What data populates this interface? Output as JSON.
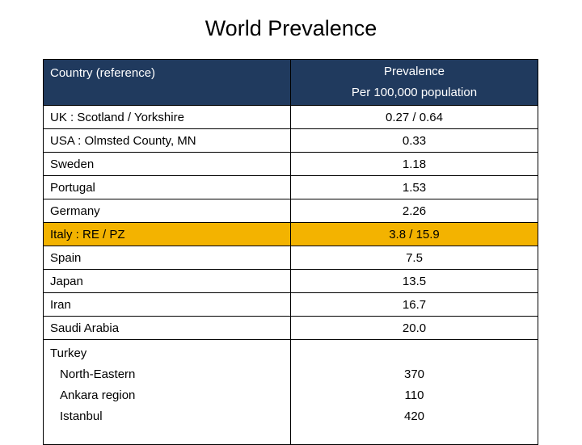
{
  "title": "World Prevalence",
  "table": {
    "header": {
      "country": "Country (reference)",
      "prevalence_line1": "Prevalence",
      "prevalence_line2": "Per 100,000 population"
    },
    "rows": [
      {
        "country": "UK   :  Scotland  /   Yorkshire",
        "value": "0.27 / 0.64",
        "highlight": false
      },
      {
        "country": "USA  :  Olmsted County, MN",
        "value": "0.33",
        "highlight": false
      },
      {
        "country": "Sweden",
        "value": "1.18",
        "highlight": false
      },
      {
        "country": "Portugal",
        "value": "1.53",
        "highlight": false
      },
      {
        "country": "Germany",
        "value": "2.26",
        "highlight": false
      },
      {
        "country": "Italy  : RE / PZ",
        "value": "3.8 / 15.9",
        "highlight": true
      },
      {
        "country": "Spain",
        "value": "7.5",
        "highlight": false
      },
      {
        "country": "Japan",
        "value": "13.5",
        "highlight": false
      },
      {
        "country": "Iran",
        "value": "16.7",
        "highlight": false
      },
      {
        "country": "Saudi Arabia",
        "value": "20.0",
        "highlight": false
      }
    ],
    "turkey": {
      "country": "Turkey",
      "regions": [
        "North-Eastern",
        "Ankara region",
        "Istanbul"
      ],
      "values": [
        "370",
        "110",
        "420"
      ]
    }
  },
  "colors": {
    "header_bg": "#203a5e",
    "highlight_bg": "#f3b300"
  }
}
